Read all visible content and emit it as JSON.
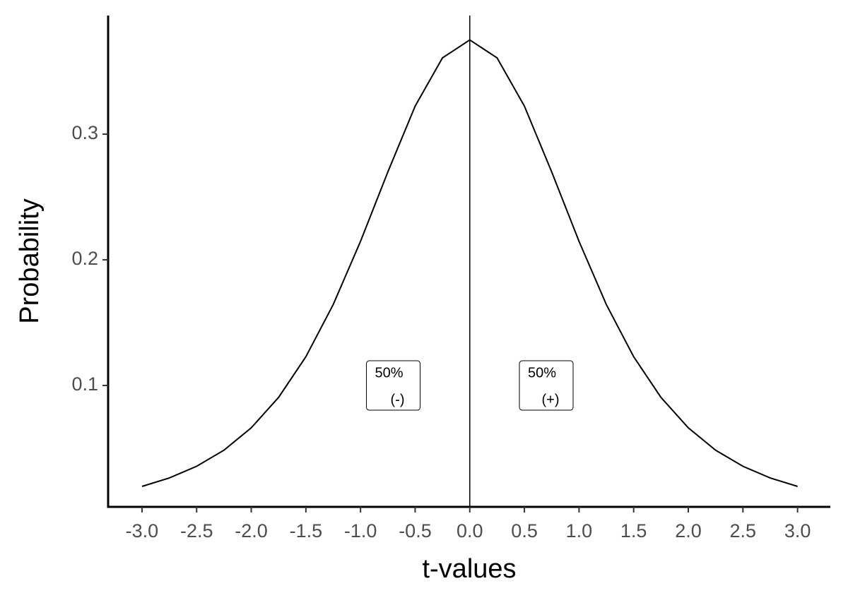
{
  "chart_data": {
    "type": "line",
    "xlabel": "t-values",
    "ylabel": "Probability",
    "x": [
      -3,
      -2.75,
      -2.5,
      -2.25,
      -2,
      -1.75,
      -1.5,
      -1.25,
      -1,
      -0.75,
      -0.5,
      -0.25,
      0,
      0.25,
      0.5,
      0.75,
      1,
      1.25,
      1.5,
      1.75,
      2,
      2.25,
      2.5,
      2.75,
      3
    ],
    "series": [
      {
        "color": "#000000",
        "values": [
          0.0197,
          0.0264,
          0.0357,
          0.0485,
          0.0663,
          0.0905,
          0.1229,
          0.1644,
          0.2147,
          0.2699,
          0.3223,
          0.3607,
          0.375,
          0.3607,
          0.3223,
          0.2699,
          0.2147,
          0.1644,
          0.1229,
          0.0905,
          0.0663,
          0.0485,
          0.0357,
          0.0264,
          0.0197
        ]
      }
    ],
    "vline": 0,
    "annotations": [
      {
        "x": -0.7,
        "y": 0.1,
        "lines": [
          "50%",
          "(-)"
        ]
      },
      {
        "x": 0.7,
        "y": 0.1,
        "lines": [
          "50%",
          "(+)"
        ]
      }
    ],
    "xlim": [
      -3.31,
      3.3
    ],
    "ylim": [
      0.0034,
      0.3944
    ],
    "xticks": [
      {
        "value": -3,
        "label": "-3.0"
      },
      {
        "value": -2.5,
        "label": "-2.5"
      },
      {
        "value": -2,
        "label": "-2.0"
      },
      {
        "value": -1.5,
        "label": "-1.5"
      },
      {
        "value": -1,
        "label": "-1.0"
      },
      {
        "value": -0.5,
        "label": "-0.5"
      },
      {
        "value": 0,
        "label": "0.0"
      },
      {
        "value": 0.5,
        "label": "0.5"
      },
      {
        "value": 1,
        "label": "1.0"
      },
      {
        "value": 1.5,
        "label": "1.5"
      },
      {
        "value": 2,
        "label": "2.0"
      },
      {
        "value": 2.5,
        "label": "2.5"
      },
      {
        "value": 3,
        "label": "3.0"
      }
    ],
    "yticks": [
      0.1,
      0.2,
      0.3
    ]
  }
}
